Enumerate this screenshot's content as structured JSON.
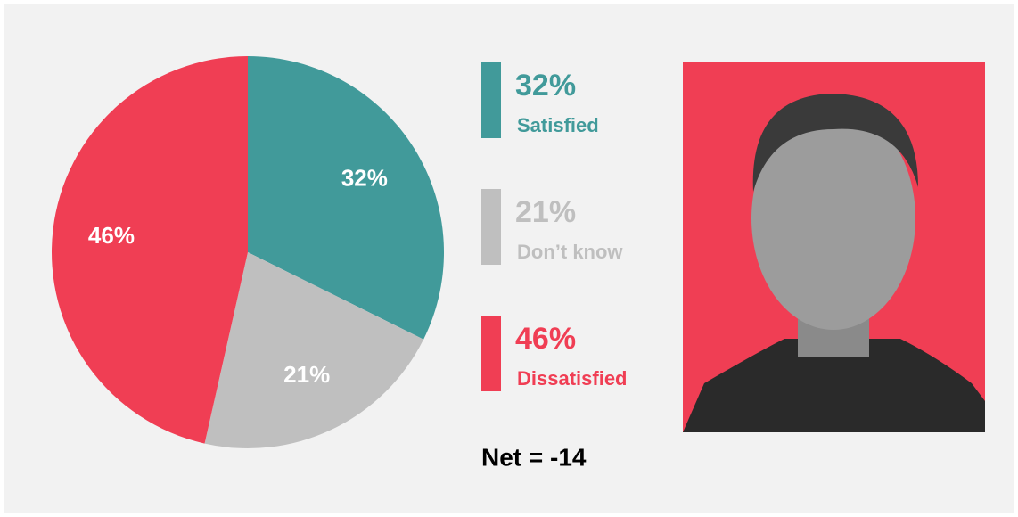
{
  "chart_data": {
    "type": "pie",
    "categories": [
      "Satisfied",
      "Don’t know",
      "Dissatisfied"
    ],
    "values": [
      32,
      21,
      46
    ],
    "value_labels": [
      "32%",
      "21%",
      "46%"
    ],
    "colors": [
      "#419a9a",
      "#bfbfbf",
      "#f03e54"
    ],
    "annotation": "Net = -14"
  }
}
